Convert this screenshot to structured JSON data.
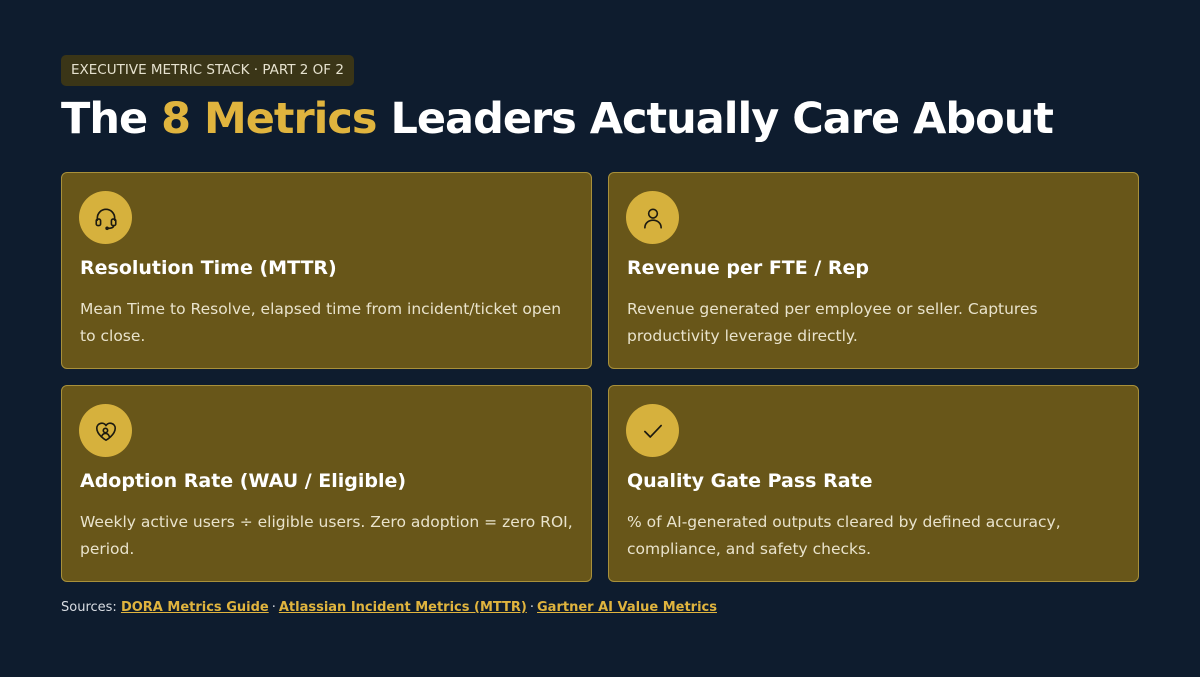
{
  "badge": "EXECUTIVE METRIC STACK · PART 2 OF 2",
  "title": {
    "prefix": "The ",
    "accent": "8 Metrics",
    "suffix": " Leaders Actually Care About"
  },
  "colors": {
    "background": "#0e1c2e",
    "accent": "#e0b43e",
    "card_fill": "#685619",
    "card_border": "#a8903a",
    "icon_circle": "#d6b13d"
  },
  "cards": [
    {
      "icon": "headset-icon",
      "title": "Resolution Time (MTTR)",
      "description": "Mean Time to Resolve, elapsed time from incident/ticket open to close."
    },
    {
      "icon": "user-icon",
      "title": "Revenue per FTE / Rep",
      "description": "Revenue generated per employee or seller. Captures productivity leverage directly."
    },
    {
      "icon": "heart-handshake-icon",
      "title": "Adoption Rate (WAU / Eligible)",
      "description": "Weekly active users ÷ eligible users. Zero adoption = zero ROI, period."
    },
    {
      "icon": "check-icon",
      "title": "Quality Gate Pass Rate",
      "description": "% of AI-generated outputs cleared by defined accuracy, compliance, and safety checks."
    }
  ],
  "sources": {
    "label": "Sources:",
    "separator": "·",
    "links": [
      "DORA Metrics Guide",
      "Atlassian Incident Metrics (MTTR)",
      "Gartner AI Value Metrics"
    ]
  }
}
